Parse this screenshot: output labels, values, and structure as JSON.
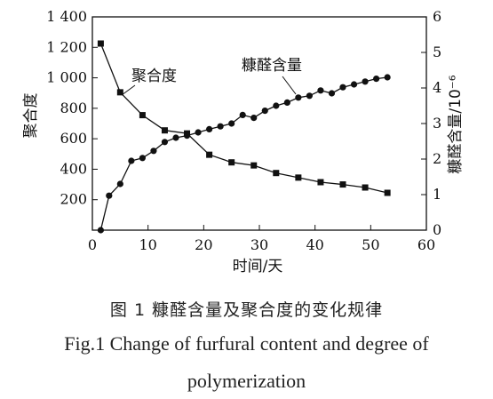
{
  "chart_data": {
    "type": "line",
    "xlabel": "时间/天",
    "ylabel_left": "聚合度",
    "ylabel_right": "糠醛含量/10⁻⁶",
    "xlim": [
      0,
      60
    ],
    "ylim_left": [
      0,
      1400
    ],
    "ylim_right": [
      0,
      6
    ],
    "x_ticks": [
      0,
      10,
      20,
      30,
      40,
      50,
      60
    ],
    "y_left_ticks": [
      200,
      400,
      600,
      800,
      1000,
      1200,
      1400
    ],
    "y_left_tick_labels": [
      "200",
      "400",
      "600",
      "800",
      "1 000",
      "1 200",
      "1 400"
    ],
    "y_right_ticks": [
      0,
      1,
      2,
      3,
      4,
      5,
      6
    ],
    "grid": false,
    "series": [
      {
        "name": "聚合度",
        "axis": "left",
        "marker": "square",
        "x": [
          1.5,
          5,
          9,
          13,
          17,
          21,
          25,
          29,
          33,
          37,
          41,
          45,
          49,
          53
        ],
        "y": [
          1225,
          905,
          755,
          655,
          635,
          495,
          445,
          425,
          375,
          345,
          315,
          300,
          280,
          245
        ]
      },
      {
        "name": "糠醛含量",
        "axis": "right",
        "marker": "circle",
        "x": [
          1.5,
          3,
          5,
          7,
          9,
          11,
          13,
          15,
          17,
          19,
          21,
          23,
          25,
          27,
          29,
          31,
          33,
          35,
          37,
          39,
          41,
          43,
          45,
          47,
          49,
          51,
          53
        ],
        "y": [
          0.0,
          0.97,
          1.3,
          1.95,
          2.03,
          2.23,
          2.48,
          2.6,
          2.66,
          2.75,
          2.84,
          2.92,
          3.0,
          3.24,
          3.16,
          3.36,
          3.5,
          3.59,
          3.73,
          3.78,
          3.93,
          3.85,
          4.02,
          4.1,
          4.18,
          4.26,
          4.3
        ]
      }
    ]
  },
  "annotations": {
    "dp_label": "聚合度",
    "furfural_label": "糠醛含量"
  },
  "caption": {
    "cn": "图 1   糠醛含量及聚合度的变化规律",
    "en_line1": "Fig.1    Change of furfural content and degree of",
    "en_line2": "polymerization"
  }
}
